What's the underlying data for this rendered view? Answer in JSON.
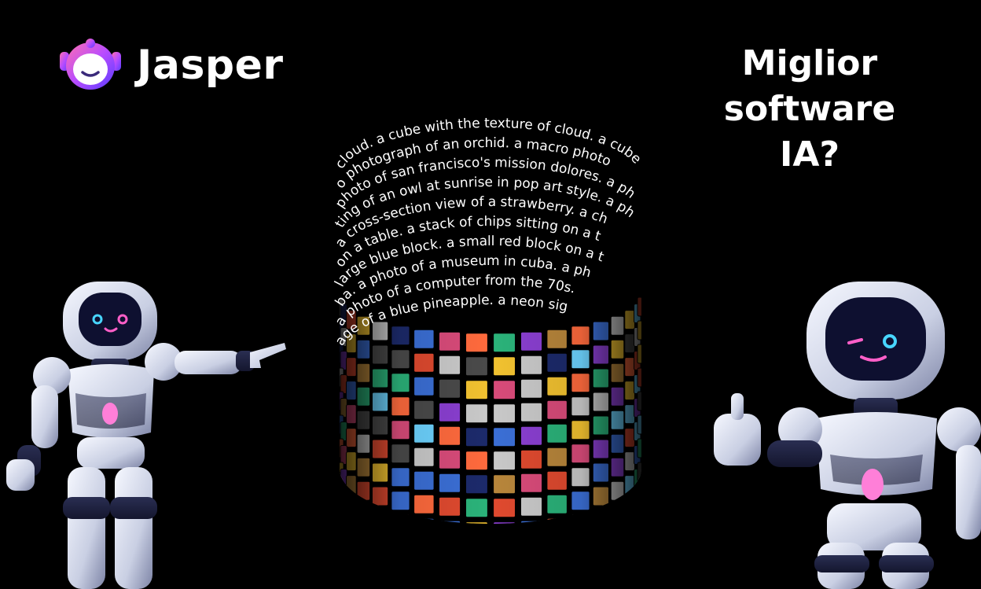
{
  "brand": {
    "name": "Jasper",
    "accent_colors": [
      "#6c3cff",
      "#c84bff",
      "#ff5fa2"
    ]
  },
  "headline": {
    "line1": "Miglior",
    "line2": "software IA?"
  },
  "cylinder": {
    "text_lines": [
      "cloud. a cube with the texture of cloud. a cube",
      "o photograph of an orchid. a macro photo",
      "photo of san francisco's mission dolores. a ph",
      "ting of an owl at sunrise in pop art style. a ph",
      "a cross-section view of a strawberry. a ch",
      "on a table. a stack of chips sitting on a t",
      "large blue block. a small red block on a t",
      "ba. a photo of a museum in cuba. a ph",
      "a photo of a computer from the 70s.",
      "age of a blue pineapple. a neon sig"
    ],
    "text_color": "#ffffff"
  },
  "robots": {
    "left_pose": "pointing",
    "right_pose": "thumbs-up",
    "body_color": "#e8ecf6",
    "visor_color": "#0e1030",
    "face_color": "#ff5fc8"
  }
}
